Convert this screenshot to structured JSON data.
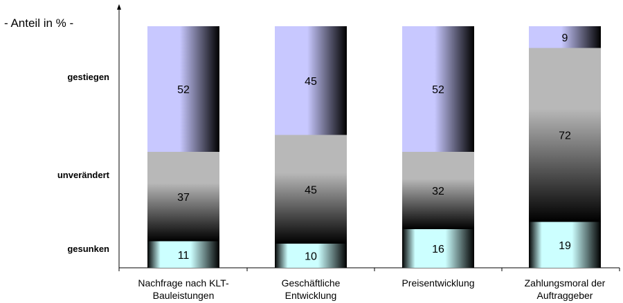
{
  "chart_data": {
    "type": "bar",
    "stacked": true,
    "unit_label": "- Anteil in % -",
    "row_labels": [
      "gestiegen",
      "unverändert",
      "gesunken"
    ],
    "categories": [
      [
        "Nachfrage nach KLT-",
        "Bauleistungen"
      ],
      [
        "Geschäftliche",
        "Entwicklung"
      ],
      [
        "Preisentwicklung"
      ],
      [
        "Zahlungsmoral der",
        "Auftraggeber"
      ]
    ],
    "series": [
      {
        "name": "gesunken",
        "values": [
          11,
          10,
          16,
          19
        ]
      },
      {
        "name": "unverändert",
        "values": [
          37,
          45,
          32,
          72
        ]
      },
      {
        "name": "gestiegen",
        "values": [
          52,
          45,
          52,
          9
        ]
      }
    ],
    "ylim": [
      0,
      100
    ],
    "legend": "none",
    "grid": false
  },
  "colors": {
    "gestiegen": "#c8c8ff",
    "unverändert": "#b8b8b8",
    "gesunken": "#ccffff",
    "gradient_dark": "#000000"
  }
}
